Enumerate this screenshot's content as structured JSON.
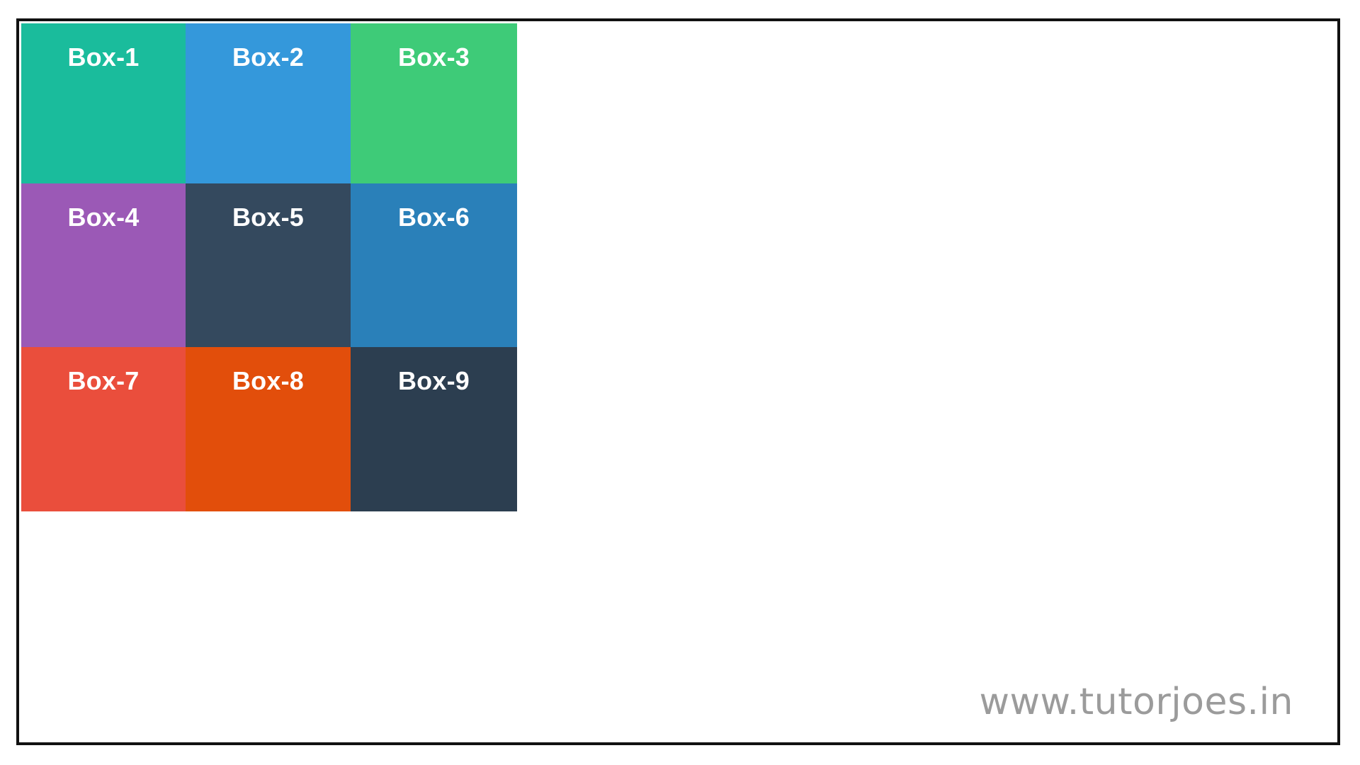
{
  "boxes": [
    {
      "label": "Box-1",
      "color": "#1abc9c"
    },
    {
      "label": "Box-2",
      "color": "#3498db"
    },
    {
      "label": "Box-3",
      "color": "#3ecb78"
    },
    {
      "label": "Box-4",
      "color": "#9b59b6"
    },
    {
      "label": "Box-5",
      "color": "#34495e"
    },
    {
      "label": "Box-6",
      "color": "#2a80b9"
    },
    {
      "label": "Box-7",
      "color": "#ea4e3c"
    },
    {
      "label": "Box-8",
      "color": "#e24e0b"
    },
    {
      "label": "Box-9",
      "color": "#2c3e50"
    }
  ],
  "watermark": "www.tutorjoes.in"
}
